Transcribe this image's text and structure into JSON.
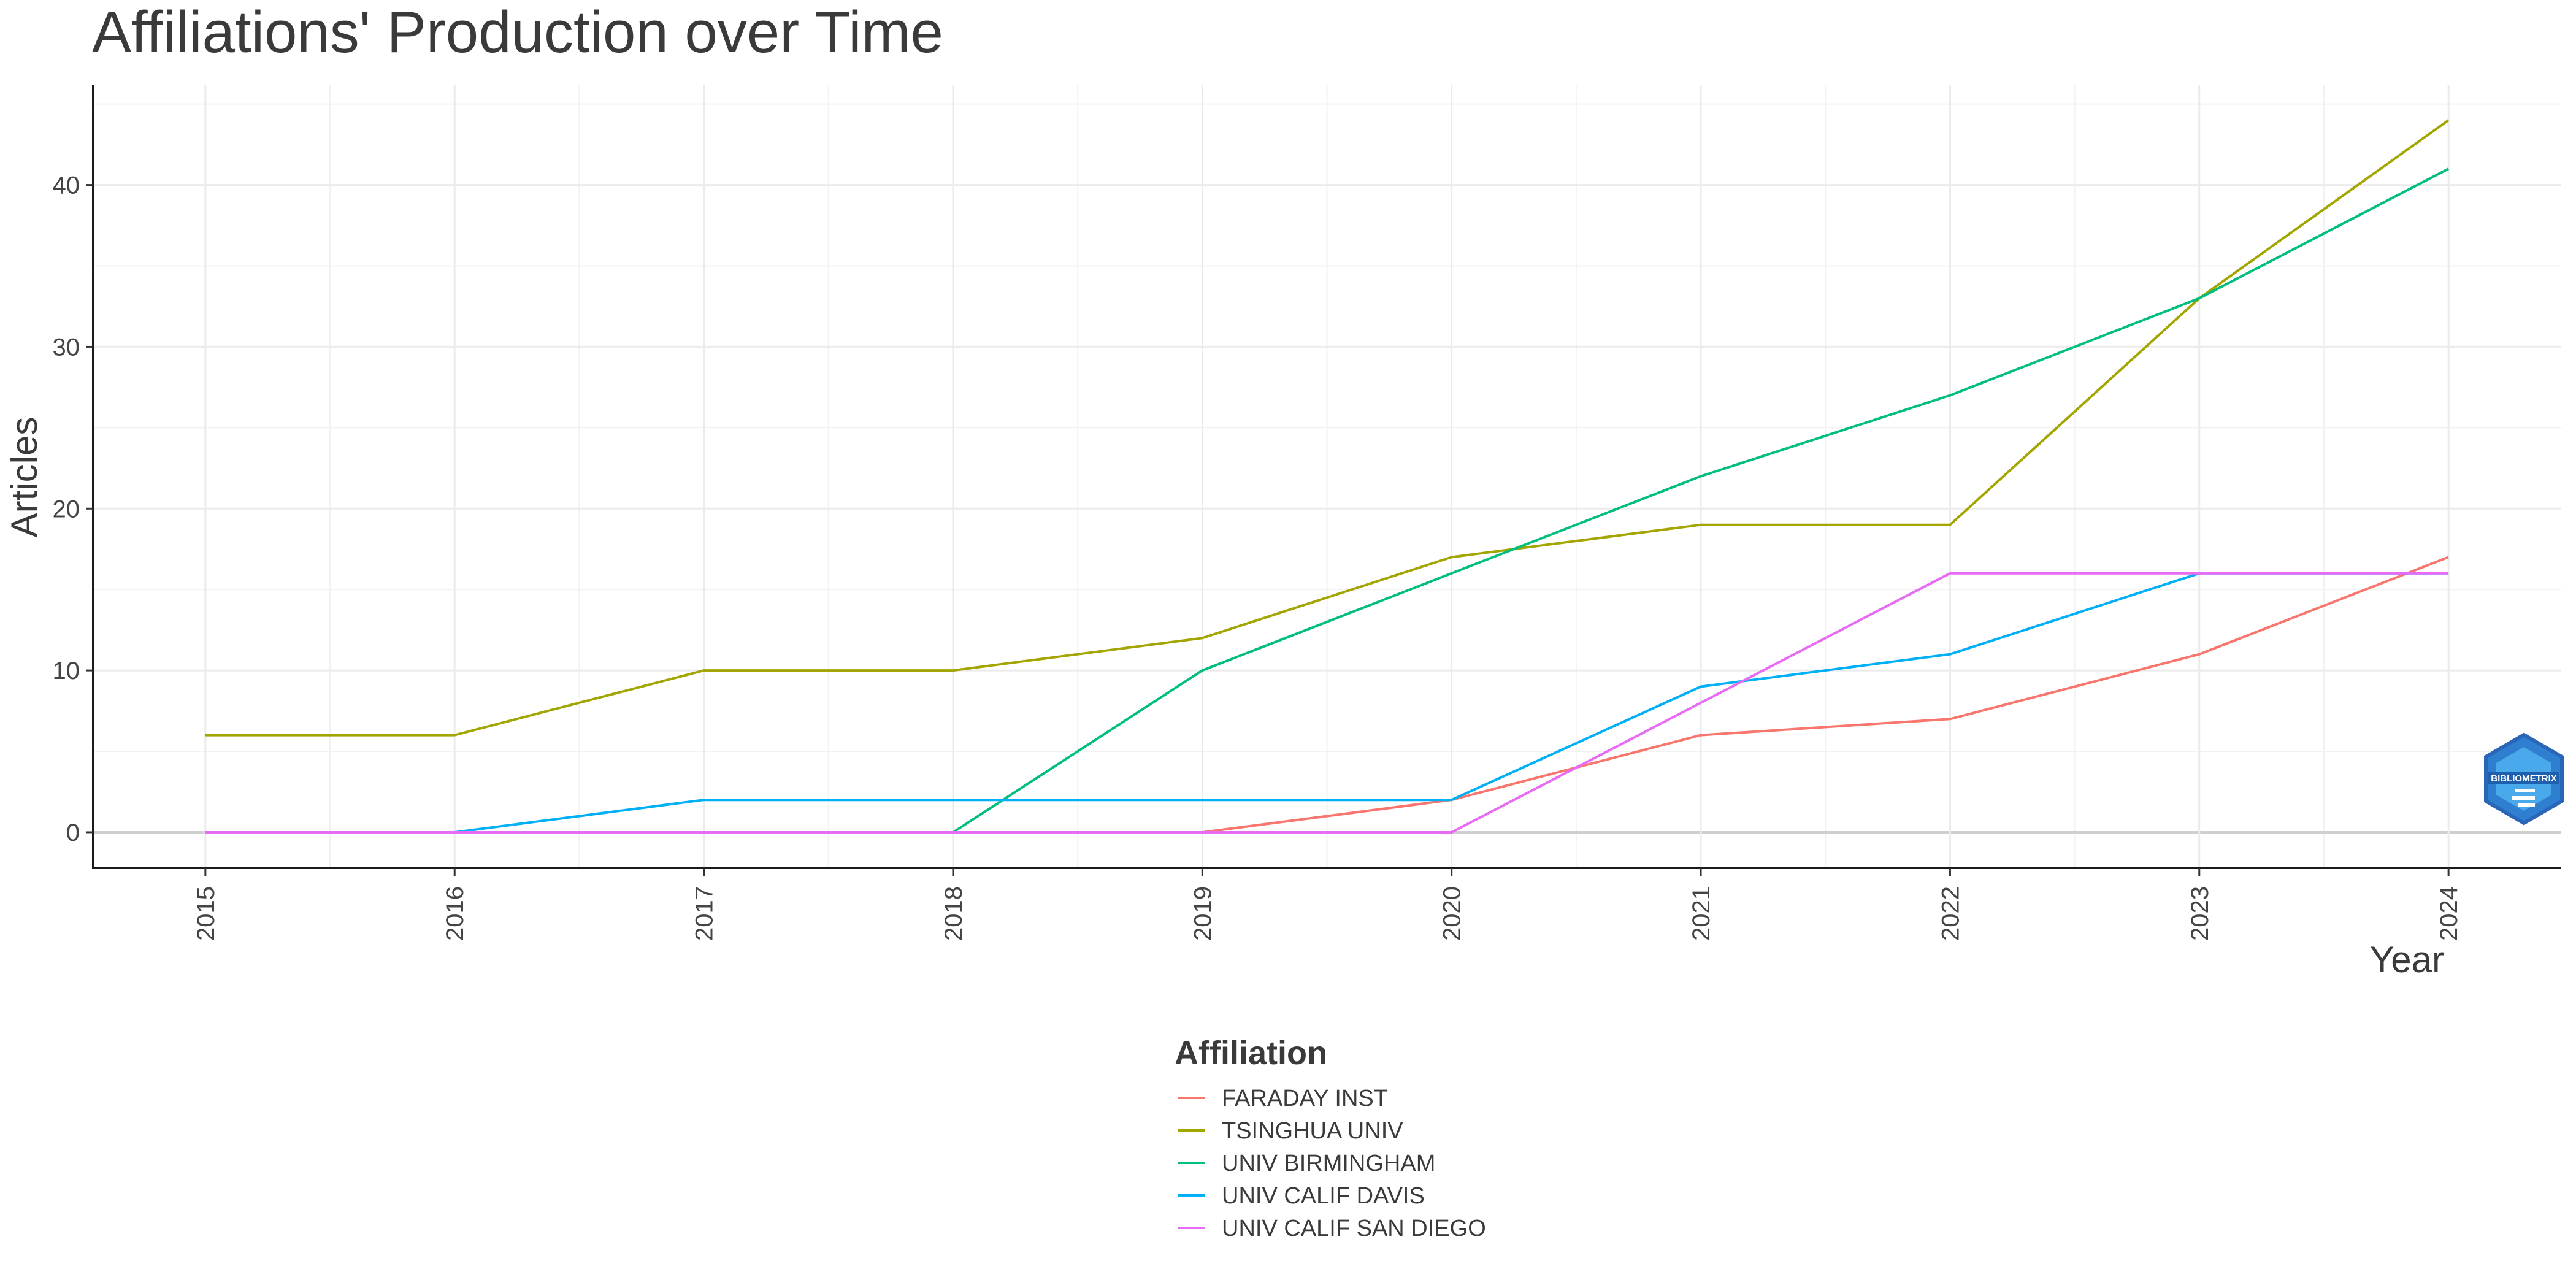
{
  "chart_data": {
    "type": "line",
    "title": "Affiliations' Production over Time",
    "xlabel": "Year",
    "ylabel": "Articles",
    "x": [
      2015,
      2016,
      2017,
      2018,
      2019,
      2020,
      2021,
      2022,
      2023,
      2024
    ],
    "x_tick_labels": [
      "2015",
      "2016",
      "2017",
      "2018",
      "2019",
      "2020",
      "2021",
      "2022",
      "2023",
      "2024"
    ],
    "y_ticks": [
      0,
      10,
      20,
      30,
      40
    ],
    "y_tick_labels": [
      "0",
      "10",
      "20",
      "30",
      "40"
    ],
    "xlim": [
      2014.55,
      2024.45
    ],
    "ylim": [
      -2.2,
      46.2
    ],
    "grid": true,
    "legend_title": "Affiliation",
    "legend_position": "bottom",
    "series": [
      {
        "name": "FARADAY INST",
        "color": "#F8766D",
        "values": [
          0,
          0,
          0,
          0,
          0,
          2,
          6,
          7,
          11,
          17
        ]
      },
      {
        "name": "TSINGHUA UNIV",
        "color": "#A3A500",
        "values": [
          6,
          6,
          10,
          10,
          12,
          17,
          19,
          19,
          33,
          44
        ]
      },
      {
        "name": "UNIV BIRMINGHAM",
        "color": "#00BF7D",
        "values": [
          0,
          0,
          0,
          0,
          10,
          16,
          22,
          27,
          33,
          41
        ]
      },
      {
        "name": "UNIV CALIF DAVIS",
        "color": "#00B0F6",
        "values": [
          0,
          0,
          2,
          2,
          2,
          2,
          9,
          11,
          16,
          16
        ]
      },
      {
        "name": "UNIV CALIF SAN DIEGO",
        "color": "#E76BF3",
        "values": [
          0,
          0,
          0,
          0,
          0,
          0,
          8,
          16,
          16,
          16
        ]
      }
    ]
  },
  "logo": {
    "text": "BIBLIOMETRIX",
    "icon": "bibliometrix-logo-icon"
  }
}
